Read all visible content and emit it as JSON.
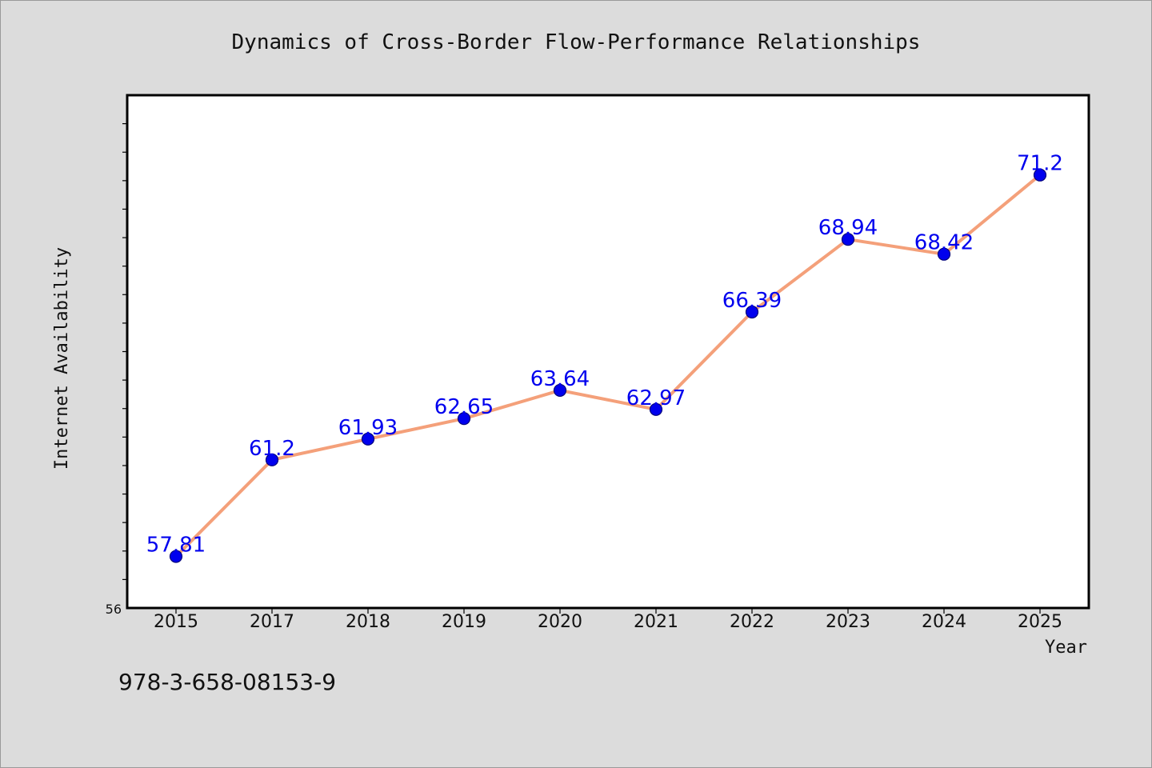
{
  "chart_data": {
    "type": "line",
    "title": "Dynamics of Cross-Border Flow-Performance Relationships",
    "xlabel": "Year",
    "ylabel": "Internet Availability",
    "categories": [
      "2015",
      "2017",
      "2018",
      "2019",
      "2020",
      "2021",
      "2022",
      "2023",
      "2024",
      "2025"
    ],
    "series": [
      {
        "values": [
          57.81,
          61.2,
          61.93,
          62.65,
          63.64,
          62.97,
          66.39,
          68.94,
          68.42,
          71.2
        ],
        "data_labels": [
          "57.81",
          "61.2",
          "61.93",
          "62.65",
          "63.64",
          "62.97",
          "66.39",
          "68.94",
          "68.42",
          "71.2"
        ]
      }
    ],
    "ylim": [
      56,
      74
    ],
    "ytick_labels": [
      "56"
    ],
    "grid": false,
    "legend": "none",
    "colors": {
      "line": "#f4a07a",
      "marker": "#0000ee",
      "marker_edge": "#00007a",
      "data_label": "#0000ee",
      "plot_bg": "#ffffff",
      "figure_bg": "#dcdcdc"
    }
  },
  "footer": {
    "isbn": "978-3-658-08153-9"
  }
}
